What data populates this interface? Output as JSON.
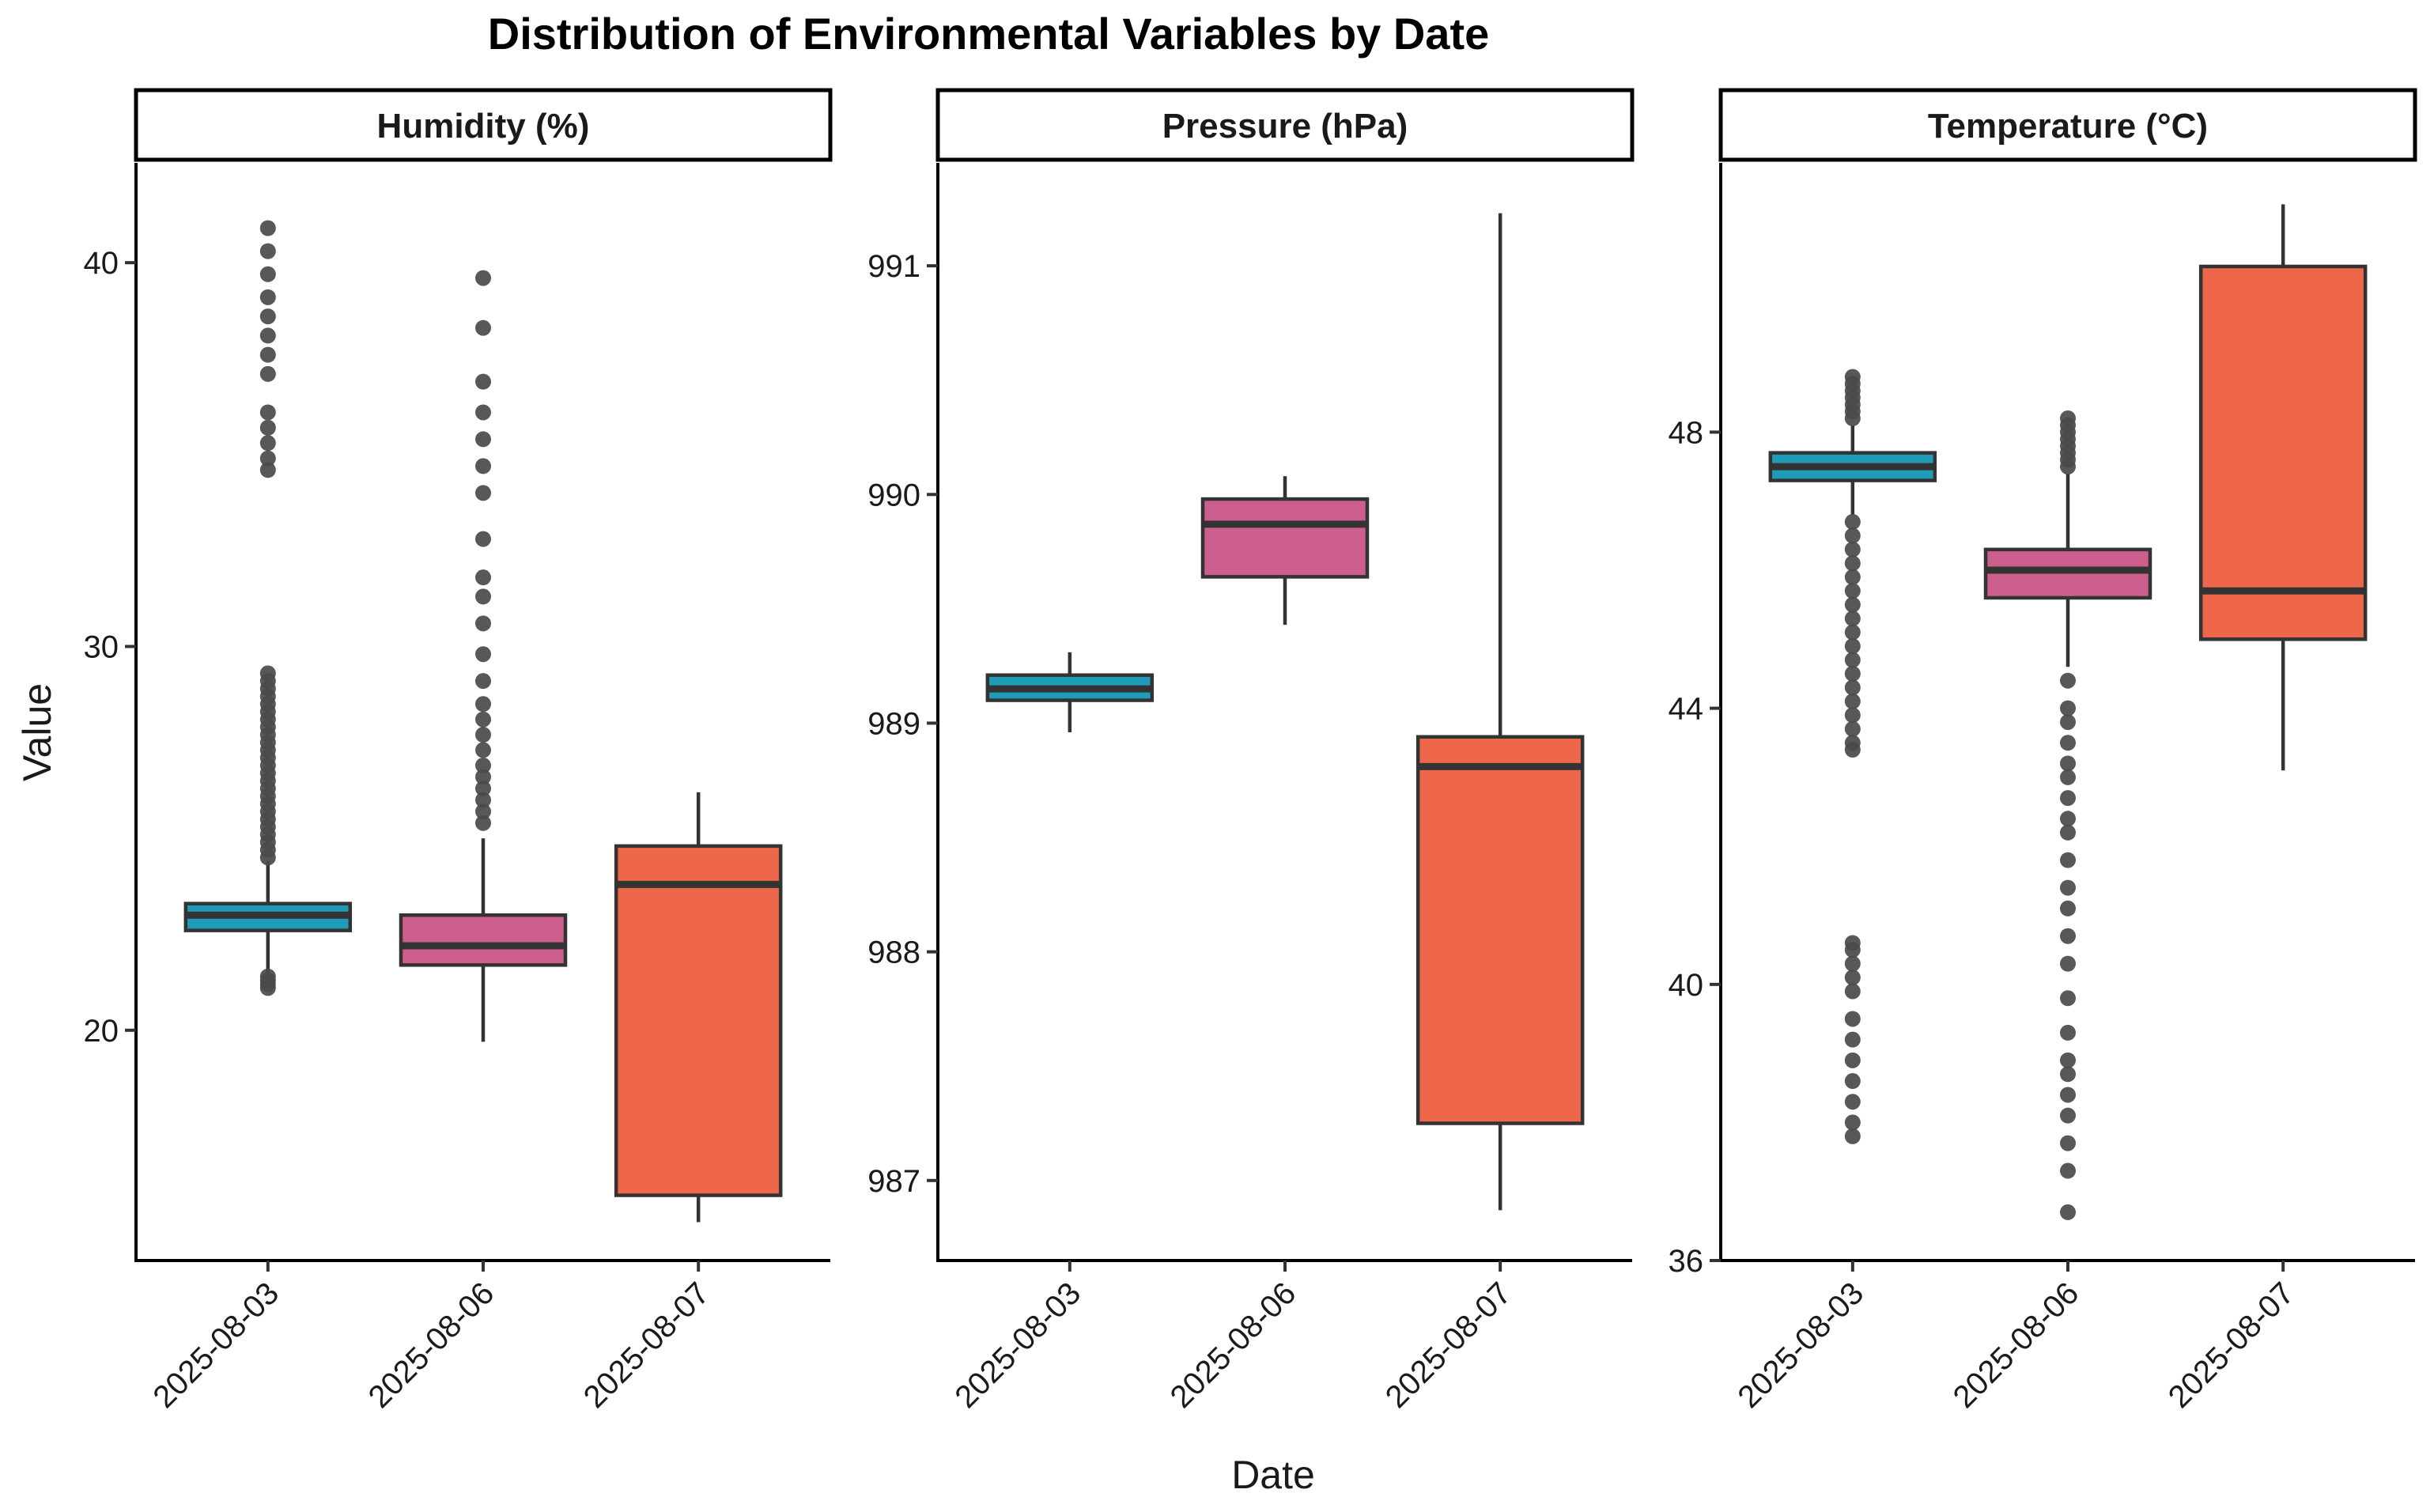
{
  "chart_data": {
    "type": "box",
    "title": "Distribution of Environmental Variables by Date",
    "xlabel": "Date",
    "ylabel": "Value",
    "categories": [
      "2025-08-03",
      "2025-08-06",
      "2025-08-07"
    ],
    "colors": [
      "#1f9bb8",
      "#cc5f8d",
      "#ef674a"
    ],
    "panels": [
      {
        "name": "Humidity (%)",
        "ylim": [
          14.0,
          42.6
        ],
        "yticks": [
          20,
          30,
          40
        ],
        "boxes": [
          {
            "category": "2025-08-03",
            "q1": 22.6,
            "median": 23.0,
            "q3": 23.3,
            "whisker_low": 21.5,
            "whisker_high": 24.4,
            "outliers": [
              21.1,
              21.2,
              21.3,
              21.4,
              24.5,
              24.7,
              24.9,
              25.1,
              25.3,
              25.5,
              25.7,
              25.9,
              26.1,
              26.3,
              26.5,
              26.7,
              26.9,
              27.1,
              27.3,
              27.5,
              27.7,
              27.9,
              28.1,
              28.3,
              28.5,
              28.7,
              28.9,
              29.1,
              29.3,
              34.6,
              34.9,
              35.3,
              35.7,
              36.1,
              37.1,
              37.6,
              38.1,
              38.6,
              39.1,
              39.7,
              40.3,
              40.9
            ]
          },
          {
            "category": "2025-08-06",
            "q1": 21.7,
            "median": 22.2,
            "q3": 23.0,
            "whisker_low": 19.7,
            "whisker_high": 25.0,
            "outliers": [
              25.4,
              25.7,
              26.0,
              26.3,
              26.6,
              26.9,
              27.3,
              27.7,
              28.1,
              28.5,
              29.1,
              29.8,
              30.6,
              31.3,
              31.8,
              32.8,
              34.0,
              34.7,
              35.4,
              36.1,
              36.9,
              38.3,
              39.6
            ]
          },
          {
            "category": "2025-08-07",
            "q1": 15.7,
            "median": 23.8,
            "q3": 24.8,
            "whisker_low": 15.0,
            "whisker_high": 26.2,
            "outliers": []
          }
        ]
      },
      {
        "name": "Pressure (hPa)",
        "ylim": [
          986.65,
          991.45
        ],
        "yticks": [
          987,
          988,
          989,
          990,
          991
        ],
        "boxes": [
          {
            "category": "2025-08-03",
            "q1": 989.1,
            "median": 989.15,
            "q3": 989.21,
            "whisker_low": 988.96,
            "whisker_high": 989.31,
            "outliers": []
          },
          {
            "category": "2025-08-06",
            "q1": 989.64,
            "median": 989.87,
            "q3": 989.98,
            "whisker_low": 989.43,
            "whisker_high": 990.08,
            "outliers": []
          },
          {
            "category": "2025-08-07",
            "q1": 987.25,
            "median": 988.81,
            "q3": 988.94,
            "whisker_low": 986.87,
            "whisker_high": 991.23,
            "outliers": []
          }
        ]
      },
      {
        "name": "Temperature (°C)",
        "ylim": [
          36.0,
          51.9
        ],
        "yticks": [
          36,
          40,
          44,
          48
        ],
        "boxes": [
          {
            "category": "2025-08-03",
            "q1": 47.3,
            "median": 47.5,
            "q3": 47.7,
            "whisker_low": 46.8,
            "whisker_high": 48.1,
            "outliers": [
              37.8,
              38.0,
              38.3,
              38.6,
              38.9,
              39.2,
              39.5,
              39.9,
              40.1,
              40.3,
              40.5,
              40.6,
              43.4,
              43.5,
              43.7,
              43.9,
              44.1,
              44.3,
              44.5,
              44.7,
              44.9,
              45.1,
              45.3,
              45.5,
              45.7,
              45.9,
              46.1,
              46.3,
              46.5,
              46.7,
              48.2,
              48.3,
              48.4,
              48.5,
              48.6,
              48.7,
              48.8
            ]
          },
          {
            "category": "2025-08-06",
            "q1": 45.6,
            "median": 46.0,
            "q3": 46.3,
            "whisker_low": 44.6,
            "whisker_high": 47.4,
            "outliers": [
              36.7,
              37.3,
              37.7,
              38.1,
              38.4,
              38.7,
              38.9,
              39.3,
              39.8,
              40.3,
              40.7,
              41.1,
              41.4,
              41.8,
              42.2,
              42.4,
              42.7,
              43.0,
              43.2,
              43.5,
              43.8,
              44.0,
              44.4,
              47.5,
              47.6,
              47.7,
              47.8,
              47.9,
              48.0,
              48.1,
              48.2
            ]
          },
          {
            "category": "2025-08-07",
            "q1": 45.0,
            "median": 45.7,
            "q3": 50.4,
            "whisker_low": 43.1,
            "whisker_high": 51.3,
            "outliers": []
          }
        ]
      }
    ]
  }
}
